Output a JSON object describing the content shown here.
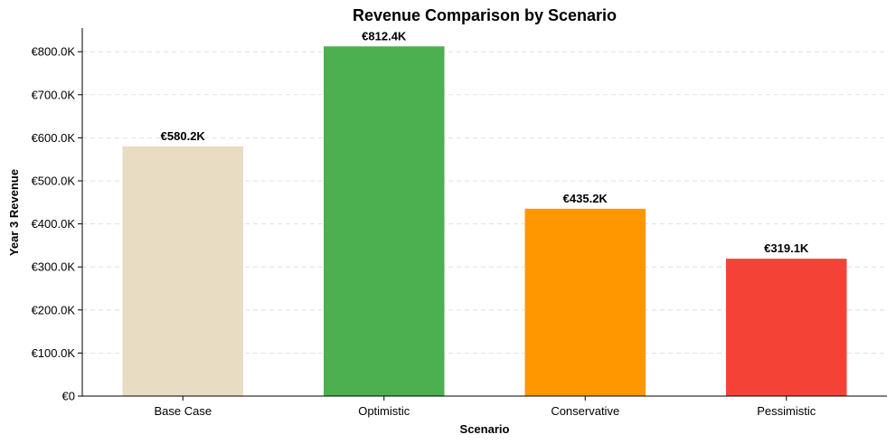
{
  "chart_data": {
    "type": "bar",
    "title": "Revenue Comparison by Scenario",
    "xlabel": "Scenario",
    "ylabel": "Year 3 Revenue",
    "categories": [
      "Base Case",
      "Optimistic",
      "Conservative",
      "Pessimistic"
    ],
    "values": [
      580.2,
      812.4,
      435.2,
      319.1
    ],
    "value_unit": "thousand EUR",
    "data_labels": [
      "€580.2K",
      "€812.4K",
      "€435.2K",
      "€319.1K"
    ],
    "colors": [
      "#e8dcc2",
      "#4caf50",
      "#ff9800",
      "#f44336"
    ],
    "ylim": [
      0,
      855
    ],
    "yticks": [
      0,
      100,
      200,
      300,
      400,
      500,
      600,
      700,
      800
    ],
    "ytick_labels": [
      "€0",
      "€100.0K",
      "€200.0K",
      "€300.0K",
      "€400.0K",
      "€500.0K",
      "€600.0K",
      "€700.0K",
      "€800.0K"
    ],
    "grid": "y-dashed",
    "legend": "none"
  }
}
